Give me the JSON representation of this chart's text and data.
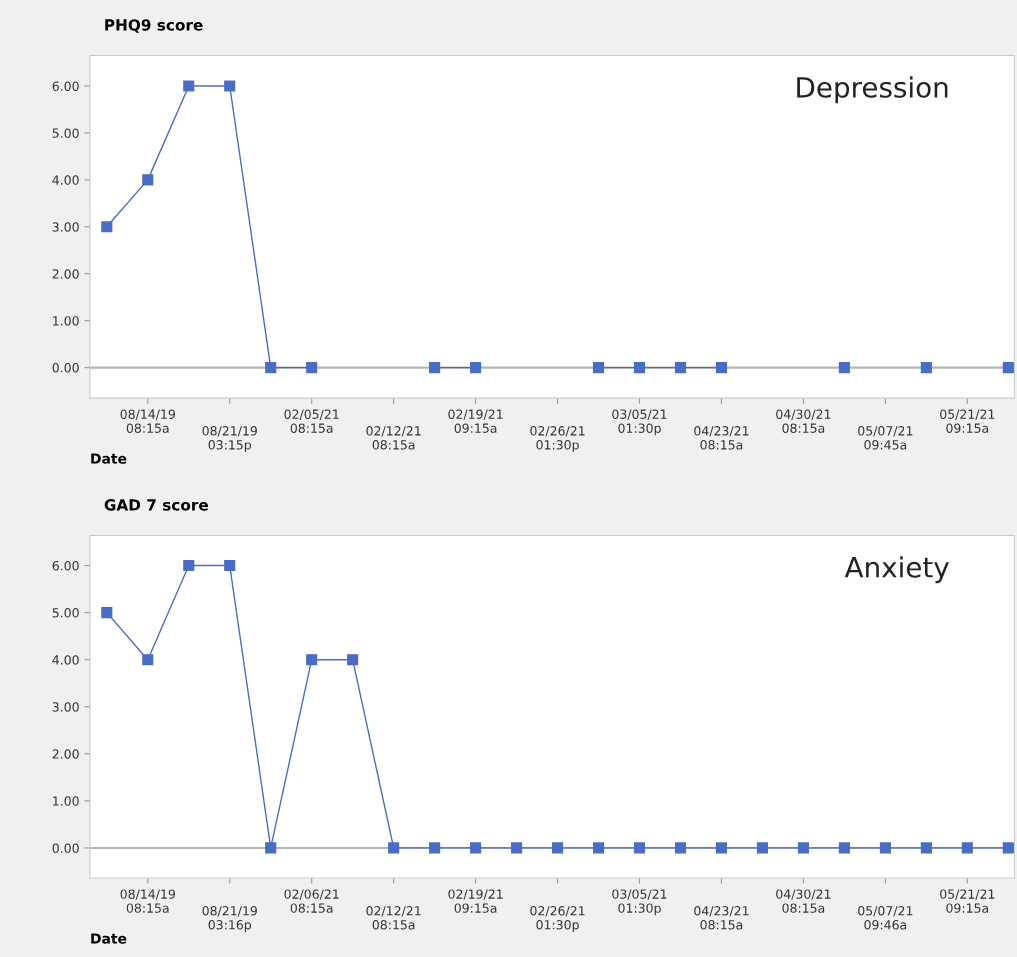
{
  "chart_data": [
    {
      "type": "line",
      "title": "PHQ9 score",
      "xlabel": "Date",
      "annotations": [
        "Depression"
      ],
      "categories": [
        null,
        "08/14/19\n08:15a",
        null,
        "08/21/19\n03:15p",
        null,
        "02/05/21\n08:15a",
        null,
        "02/12/21\n08:15a",
        null,
        "02/19/21\n09:15a",
        null,
        "02/26/21\n01:30p",
        null,
        "03/05/21\n01:30p",
        null,
        "04/23/21\n08:15a",
        null,
        "04/30/21\n08:15a",
        null,
        "05/07/21\n09:45a",
        null,
        "05/21/21\n09:15a",
        null
      ],
      "series": [
        {
          "color": "#4a6cc4",
          "values": [
            3,
            4,
            6,
            6,
            0,
            0,
            null,
            null,
            0,
            0,
            null,
            null,
            0,
            0,
            0,
            0,
            null,
            null,
            0,
            null,
            0,
            null,
            0
          ]
        }
      ],
      "ylim": [
        -0.65,
        6.65
      ],
      "yticks": [
        {
          "value": 0,
          "label": "0.00"
        },
        {
          "value": 1,
          "label": "1.00"
        },
        {
          "value": 2,
          "label": "2.00"
        },
        {
          "value": 3,
          "label": "3.00"
        },
        {
          "value": 4,
          "label": "4.00"
        },
        {
          "value": 5,
          "label": "5.00"
        },
        {
          "value": 6,
          "label": "6.00"
        }
      ],
      "ref_lines": [
        {
          "axis": "y",
          "value": 0,
          "color": "#b4b4b4"
        }
      ],
      "marker": "square",
      "line_style": "solid",
      "grid": false
    },
    {
      "type": "line",
      "title": "GAD 7 score",
      "xlabel": "Date",
      "annotations": [
        "Anxiety"
      ],
      "categories": [
        null,
        "08/14/19\n08:15a",
        null,
        "08/21/19\n03:16p",
        null,
        "02/06/21\n08:15a",
        null,
        "02/12/21\n08:15a",
        null,
        "02/19/21\n09:15a",
        null,
        "02/26/21\n01:30p",
        null,
        "03/05/21\n01:30p",
        null,
        "04/23/21\n08:15a",
        null,
        "04/30/21\n08:15a",
        null,
        "05/07/21\n09:46a",
        null,
        "05/21/21\n09:15a",
        null
      ],
      "series": [
        {
          "color": "#4a6cc4",
          "values": [
            5,
            4,
            6,
            6,
            0,
            4,
            4,
            0,
            0,
            0,
            0,
            0,
            0,
            0,
            0,
            0,
            0,
            0,
            0,
            0,
            0,
            0,
            0
          ]
        }
      ],
      "ylim": [
        -0.64,
        6.64
      ],
      "yticks": [
        {
          "value": 0,
          "label": "0.00"
        },
        {
          "value": 1,
          "label": "1.00"
        },
        {
          "value": 2,
          "label": "2.00"
        },
        {
          "value": 3,
          "label": "3.00"
        },
        {
          "value": 4,
          "label": "4.00"
        },
        {
          "value": 5,
          "label": "5.00"
        },
        {
          "value": 6,
          "label": "6.00"
        }
      ],
      "ref_lines": [
        {
          "axis": "y",
          "value": 0,
          "color": "#b4b4b4"
        }
      ],
      "marker": "square",
      "line_style": "solid",
      "grid": false
    }
  ]
}
